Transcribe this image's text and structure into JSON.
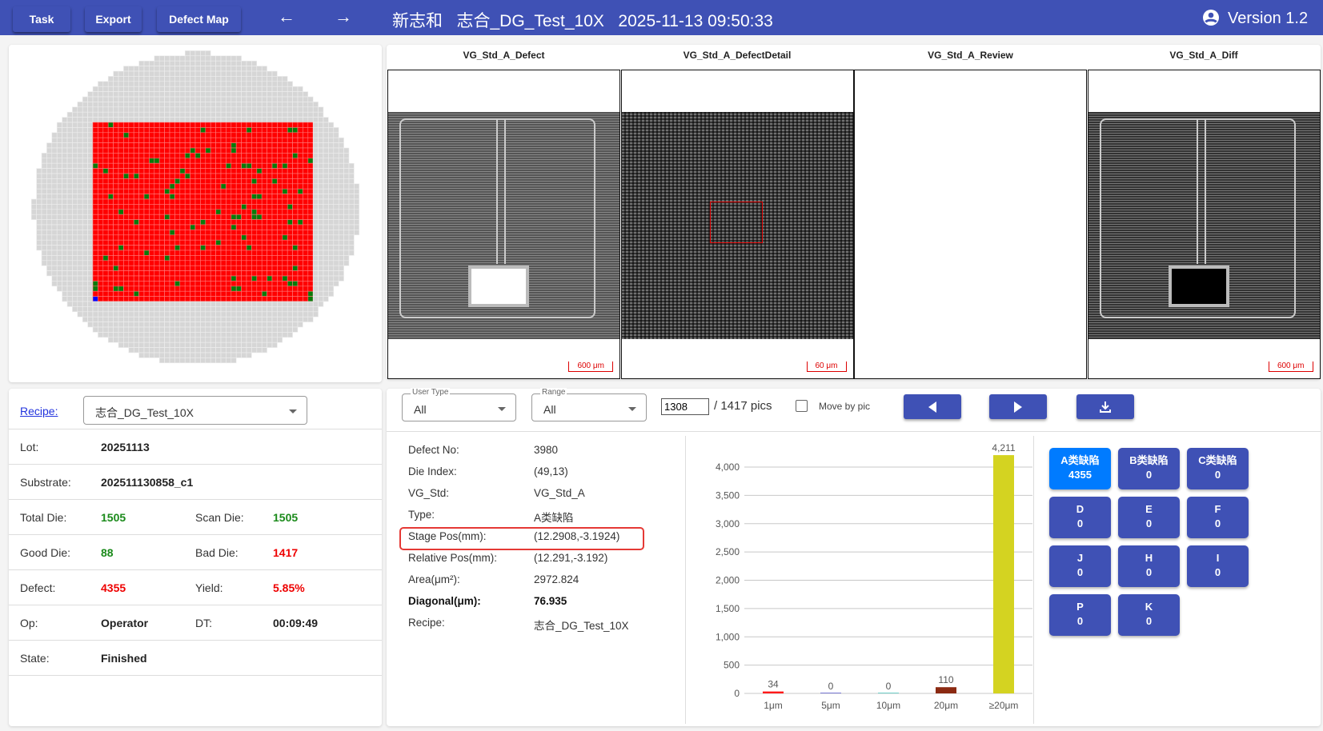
{
  "header": {
    "buttons": [
      "Task",
      "Export",
      "Defect Map"
    ],
    "back_icon": "arrow-left-icon",
    "forward_icon": "arrow-right-icon",
    "title": "新志和   志合_DG_Test_10X   2025-11-13 09:50:33",
    "version": "Version 1.2",
    "user_icon": "account-circle-icon"
  },
  "wafer": {
    "columns": 43,
    "rows": 35,
    "colors": {
      "bad": "#ff0000",
      "good": "#0a7a0a",
      "outside": "#d6d6d6",
      "selected": "#0000ff"
    }
  },
  "images": [
    {
      "title": "VG_Std_A_Defect",
      "scale": "600 μm"
    },
    {
      "title": "VG_Std_A_DefectDetail",
      "scale": "60 μm"
    },
    {
      "title": "VG_Std_A_Review",
      "scale": ""
    },
    {
      "title": "VG_Std_A_Diff",
      "scale": "600 μm"
    }
  ],
  "info": {
    "recipe_label": "Recipe:",
    "recipe_value": "志合_DG_Test_10X",
    "lot_label": "Lot:",
    "lot": "20251113",
    "substrate_label": "Substrate:",
    "substrate": "202511130858_c1",
    "total_die_label": "Total Die:",
    "total_die": "1505",
    "scan_die_label": "Scan Die:",
    "scan_die": "1505",
    "good_die_label": "Good Die:",
    "good_die": "88",
    "bad_die_label": "Bad Die:",
    "bad_die": "1417",
    "defect_label": "Defect:",
    "defect": "4355",
    "yield_label": "Yield:",
    "yield": "5.85%",
    "op_label": "Op:",
    "op": "Operator",
    "dt_label": "DT:",
    "dt": "00:09:49",
    "state_label": "State:",
    "state": "Finished"
  },
  "filters": {
    "user_type_label": "User Type",
    "user_type": "All",
    "range_label": "Range",
    "range": "All",
    "pic_index": "1308",
    "pic_total": "/ 1417 pics",
    "move_by_pic": "Move by pic",
    "move_by_pic_checked": false
  },
  "details": [
    {
      "label": "Defect No:",
      "value": "3980"
    },
    {
      "label": "Die Index:",
      "value": "(49,13)"
    },
    {
      "label": "VG_Std:",
      "value": "VG_Std_A"
    },
    {
      "label": "Type:",
      "value": "A类缺陷"
    },
    {
      "label": "Stage Pos(mm):",
      "value": "(12.2908,-3.1924)"
    },
    {
      "label": "Relative Pos(mm):",
      "value": "(12.291,-3.192)"
    },
    {
      "label": "Area(μm²):",
      "value": "2972.824"
    },
    {
      "label": "Diagonal(μm):",
      "value": "76.935"
    },
    {
      "label": "Recipe:",
      "value": "志合_DG_Test_10X"
    }
  ],
  "chart_data": {
    "type": "bar",
    "categories": [
      "1μm",
      "5μm",
      "10μm",
      "20μm",
      "≥20μm"
    ],
    "values": [
      34,
      0,
      0,
      110,
      4211
    ],
    "colors": [
      "#ff1a1a",
      "#7b7bd6",
      "#6fcfc8",
      "#8b2a12",
      "#d4d321"
    ],
    "data_labels": [
      "34",
      "0",
      "0",
      "110",
      "4,211"
    ],
    "yticks": [
      0,
      500,
      1000,
      1500,
      2000,
      2500,
      3000,
      3500,
      4000
    ],
    "ytick_labels": [
      "0",
      "500",
      "1,000",
      "1,500",
      "2,000",
      "2,500",
      "3,000",
      "3,500",
      "4,000"
    ],
    "ylim": [
      0,
      4211
    ],
    "grid": true
  },
  "classes": [
    {
      "name": "A类缺陷",
      "count": "4355",
      "active": true
    },
    {
      "name": "B类缺陷",
      "count": "0"
    },
    {
      "name": "C类缺陷",
      "count": "0"
    },
    {
      "name": "D",
      "count": "0"
    },
    {
      "name": "E",
      "count": "0"
    },
    {
      "name": "F",
      "count": "0"
    },
    {
      "name": "J",
      "count": "0"
    },
    {
      "name": "H",
      "count": "0"
    },
    {
      "name": "I",
      "count": "0"
    },
    {
      "name": "P",
      "count": "0"
    },
    {
      "name": "K",
      "count": "0"
    }
  ],
  "colors": {
    "primary": "#3f51b5",
    "active": "#007bff",
    "highlight": "#e53935"
  }
}
